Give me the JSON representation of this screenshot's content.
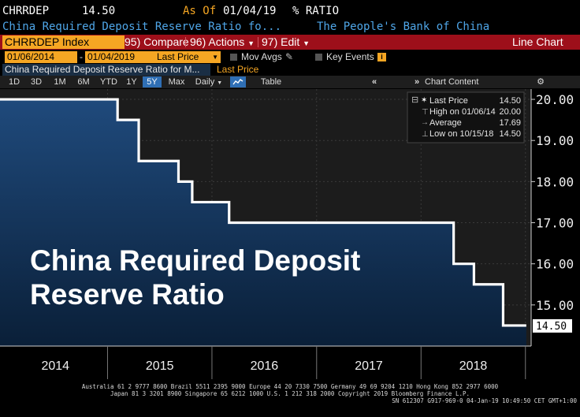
{
  "header": {
    "ticker": "CHRRDEP",
    "price": "14.50",
    "as_of_label": "As Of",
    "as_of_date": "01/04/19",
    "unit": "% RATIO",
    "long_name": "China Required Deposit Reserve Ratio fo...",
    "source": "The People's Bank of China"
  },
  "command_bar": {
    "security": "CHRRDEP Index",
    "compare_num": "95)",
    "compare": "Compare",
    "actions_num": "96)",
    "actions": "Actions",
    "edit_num": "97)",
    "edit": "Edit",
    "chart_type": "Line Chart"
  },
  "date_bar": {
    "start": "01/06/2014",
    "dash": "-",
    "end": "01/04/2019",
    "field": "Last Price",
    "mov_avgs": "Mov Avgs",
    "key_events": "Key Events"
  },
  "subtitle": {
    "series": "China Required Deposit Reserve Ratio for M...",
    "field": "Last Price"
  },
  "range_bar": {
    "ranges": [
      "1D",
      "3D",
      "1M",
      "6M",
      "YTD",
      "1Y",
      "5Y",
      "Max"
    ],
    "selected": "5Y",
    "period": "Daily",
    "table": "Table",
    "chart_content": "Chart Content"
  },
  "legend": {
    "last_price_label": "Last Price",
    "last_price_value": "14.50",
    "high_label": "High on 01/06/14",
    "high_value": "20.00",
    "avg_label": "Average",
    "avg_value": "17.69",
    "low_label": "Low on 10/15/18",
    "low_value": "14.50"
  },
  "overlay_title": [
    "China Required Deposit",
    "Reserve Ratio"
  ],
  "footer": {
    "line1": "Australia 61 2 9777 8600 Brazil 5511 2395 9000 Europe 44 20 7330 7500 Germany 49 69 9204 1210 Hong Kong 852 2977 6000",
    "line2": "Japan 81 3 3201 8900       Singapore 65 6212 1000       U.S. 1 212 318 2000              Copyright 2019 Bloomberg Finance L.P.",
    "line3": "SN 612307 G917-969-0 04-Jan-19 10:49:50 CET  GMT+1:00"
  },
  "colors": {
    "accent_orange": "#f5a623",
    "command_red": "#9d0f1a",
    "fill_top": "#1f4a7c",
    "fill_bottom": "#0a1f38",
    "header_blue": "#4fa6e8"
  },
  "chart_data": {
    "type": "area",
    "title": "China Required Deposit Reserve Ratio",
    "xlabel": "",
    "ylabel": "",
    "x": [
      "2014-01-06",
      "2015-02-05",
      "2015-04-20",
      "2016-02-29",
      "2016-03-01",
      "2017-01-01",
      "2018-04-25",
      "2018-07-05",
      "2018-10-15",
      "2019-01-04"
    ],
    "series": [
      {
        "name": "Last Price",
        "points": [
          [
            "2014-01-06",
            20.0
          ],
          [
            "2015-02-05",
            19.5
          ],
          [
            "2015-04-20",
            18.5
          ],
          [
            "2015-09-06",
            18.0
          ],
          [
            "2015-10-24",
            17.5
          ],
          [
            "2016-03-01",
            17.0
          ],
          [
            "2018-04-25",
            16.0
          ],
          [
            "2018-07-05",
            15.5
          ],
          [
            "2018-10-15",
            14.5
          ],
          [
            "2019-01-04",
            14.5
          ]
        ]
      }
    ],
    "x_tick_labels": [
      "2014",
      "2015",
      "2016",
      "2017",
      "2018"
    ],
    "y_tick_labels": [
      "20.00",
      "19.00",
      "18.00",
      "17.00",
      "16.00",
      "15.00"
    ],
    "y_ticks": [
      20,
      19,
      18,
      17,
      16,
      15
    ],
    "ylim": [
      14.0,
      20.25
    ],
    "last_value_label": "14.50",
    "grid": true,
    "legend_position": "top-right"
  }
}
